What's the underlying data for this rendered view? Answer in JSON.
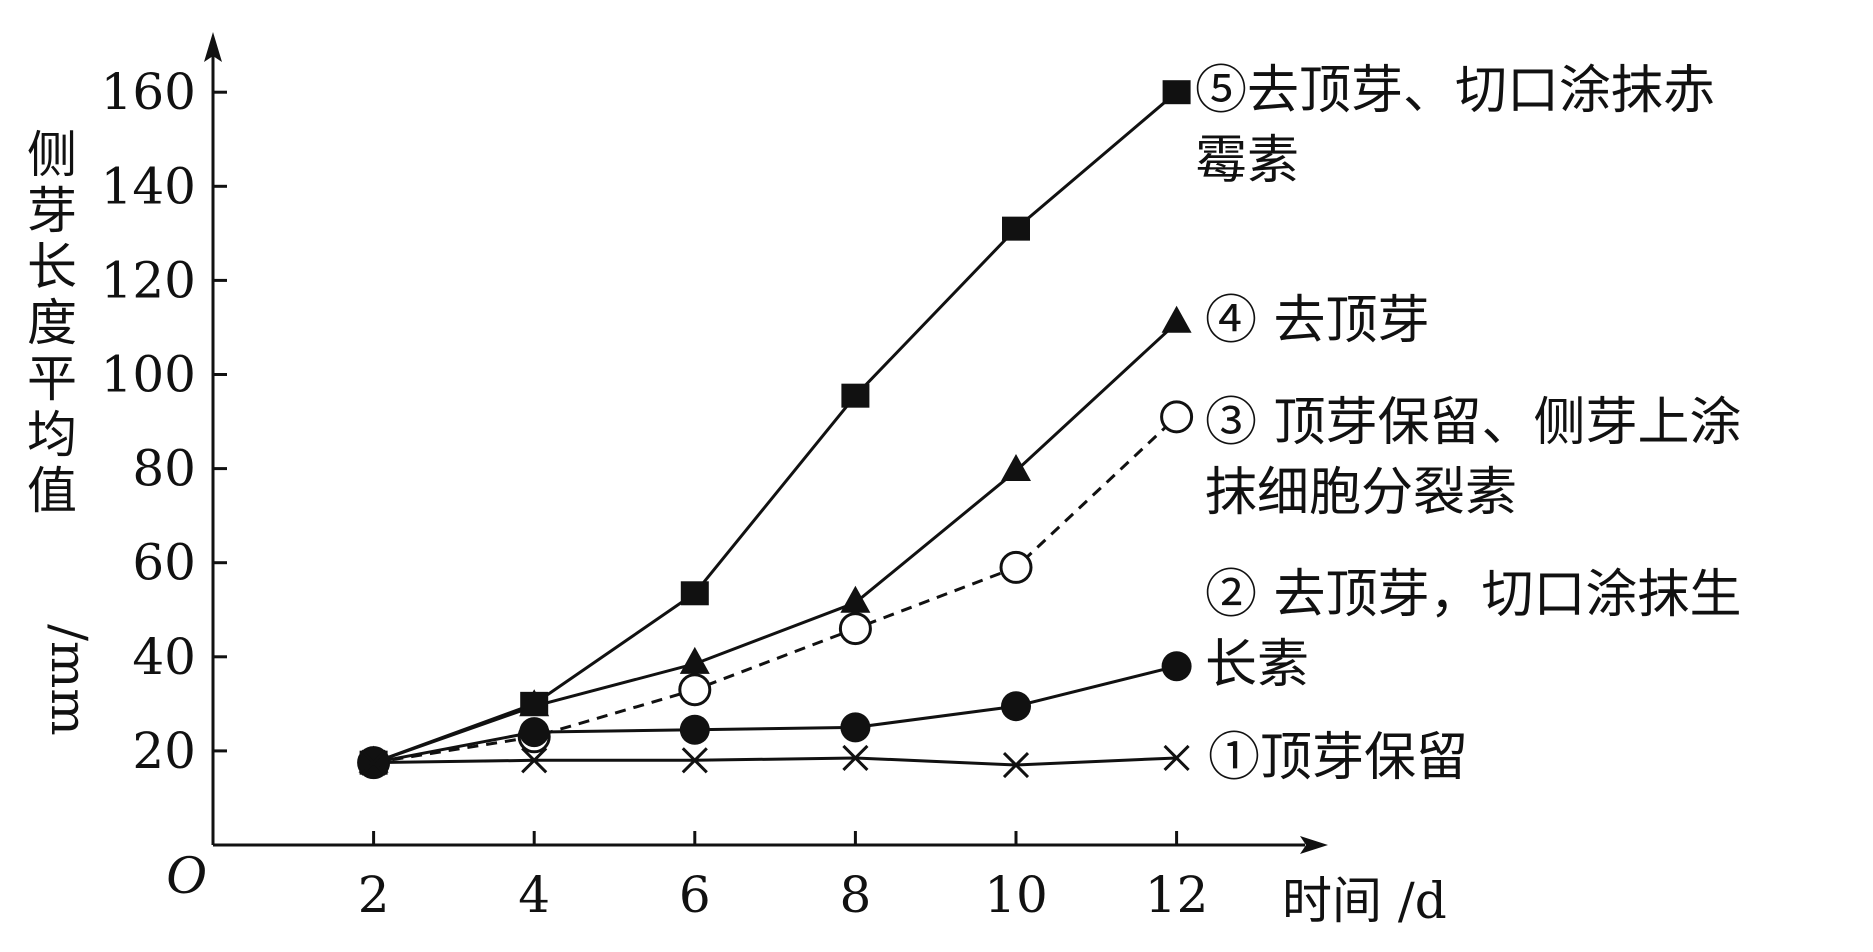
{
  "chart_data": {
    "type": "line",
    "title": "",
    "xlabel": "时间 /d",
    "ylabel_chars": [
      "侧",
      "芽",
      "长",
      "度",
      "平",
      "均",
      "值"
    ],
    "ylabel_unit": "/mm",
    "origin_label": "O",
    "x": [
      2,
      4,
      6,
      8,
      10,
      12
    ],
    "x_ticks": [
      2,
      4,
      6,
      8,
      10,
      12
    ],
    "y_ticks": [
      20,
      40,
      60,
      80,
      100,
      120,
      140,
      160
    ],
    "xlim": [
      0,
      14
    ],
    "ylim": [
      0,
      170
    ],
    "grid": false,
    "series": [
      {
        "label_lines": [
          "⑤去顶芽、切口涂抹赤",
          "霉素"
        ],
        "marker": "square",
        "dashed": false,
        "values": [
          17.5,
          30,
          53.5,
          95.5,
          131,
          160
        ]
      },
      {
        "label_lines": [
          "④ 去顶芽"
        ],
        "marker": "triangle",
        "dashed": false,
        "values": [
          17.5,
          29.5,
          38.5,
          51.5,
          79.5,
          111
        ]
      },
      {
        "label_lines": [
          "③ 顶芽保留、侧芽上涂",
          "抹细胞分裂素"
        ],
        "marker": "circle-open",
        "dashed": true,
        "values": [
          17.5,
          23,
          33,
          46,
          59,
          91
        ]
      },
      {
        "label_lines": [
          "② 去顶芽，切口涂抹生",
          "长素"
        ],
        "marker": "circle-filled",
        "dashed": false,
        "values": [
          17.5,
          24,
          24.5,
          25,
          29.5,
          38
        ]
      },
      {
        "label_lines": [
          "①顶芽保留"
        ],
        "marker": "cross",
        "dashed": false,
        "values": [
          17.5,
          18,
          18,
          18.5,
          17,
          18.5
        ]
      }
    ]
  }
}
